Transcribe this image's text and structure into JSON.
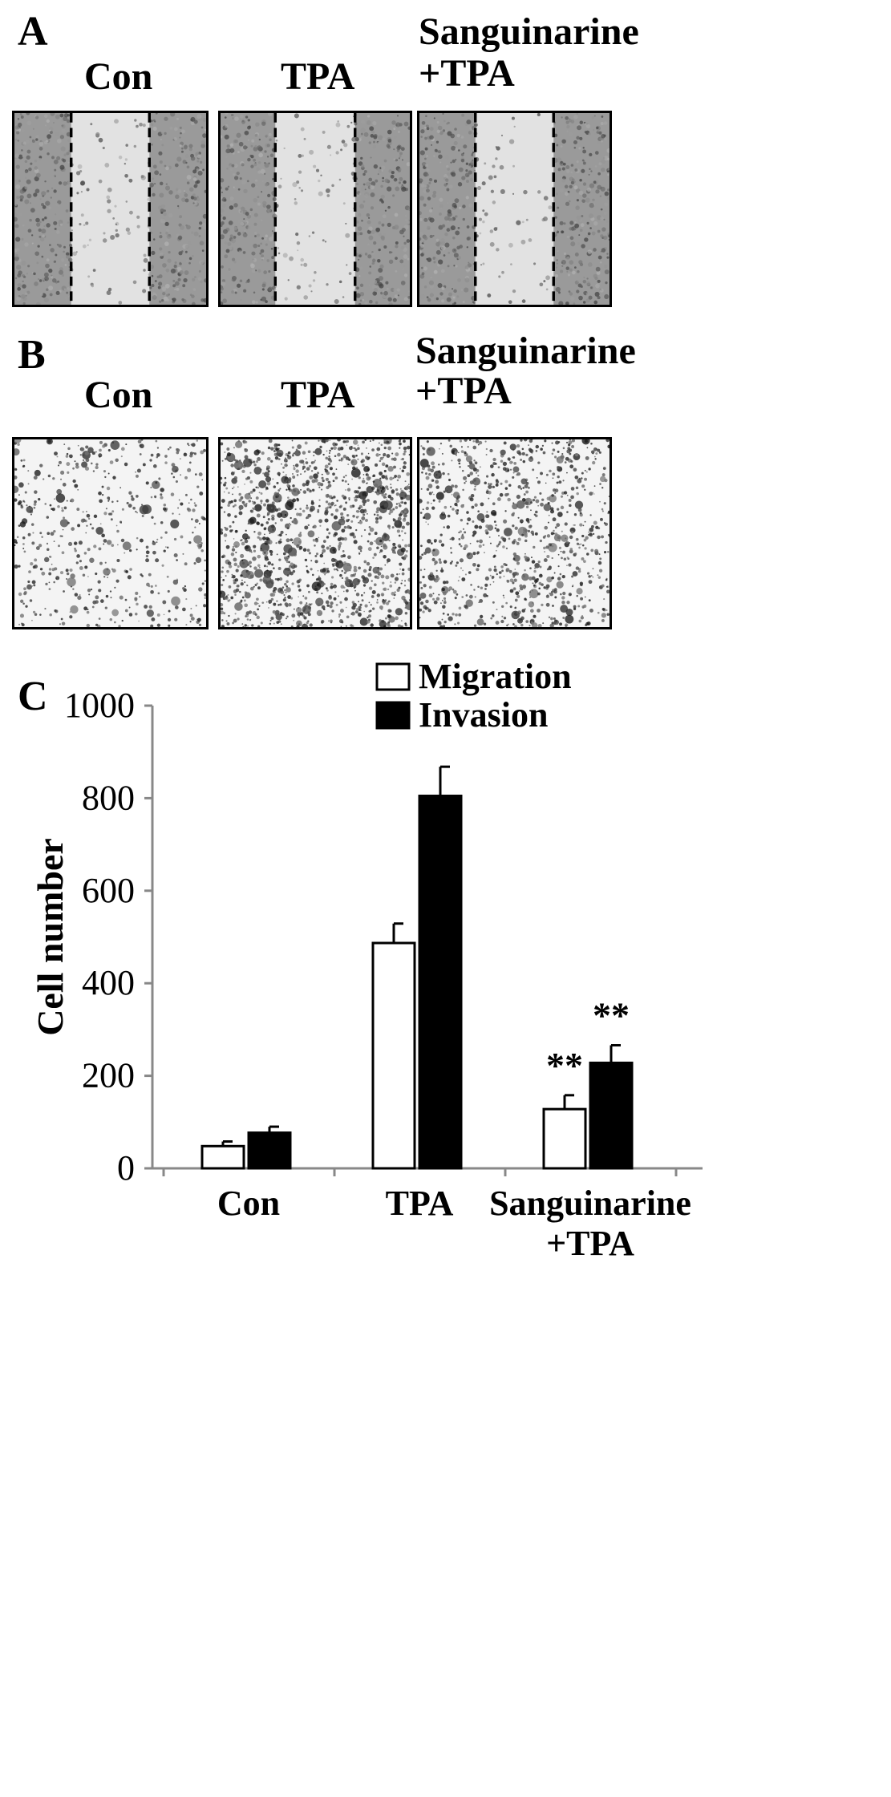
{
  "panel_a": {
    "letter": "A",
    "labels": [
      "Con",
      "TPA"
    ],
    "label3_line1": "Sanguinarine",
    "label3_line2": "+TPA"
  },
  "panel_b": {
    "letter": "B",
    "labels": [
      "Con",
      "TPA"
    ],
    "label3_line1": "Sanguinarine",
    "label3_line2": "+TPA"
  },
  "panel_c": {
    "letter": "C"
  },
  "colors": {
    "migration": "#ffffff",
    "invasion": "#000000",
    "wound_bg": "#9a9a9a",
    "wound_gap": "#e2e2e2",
    "transwell_bg": "#f4f4f4"
  },
  "chart_data": {
    "type": "bar",
    "categories": [
      "Con",
      "TPA",
      "Sanguinarine\n+TPA"
    ],
    "category_lines": [
      [
        "Con"
      ],
      [
        "TPA"
      ],
      [
        "Sanguinarine",
        "+TPA"
      ]
    ],
    "series": [
      {
        "name": "Migration",
        "values": [
          48,
          487,
          128
        ],
        "errors": [
          10,
          42,
          30
        ],
        "color": "#ffffff"
      },
      {
        "name": "Invasion",
        "values": [
          77,
          805,
          228
        ],
        "errors": [
          13,
          63,
          38
        ],
        "color": "#000000"
      }
    ],
    "annotations": [
      {
        "category": 2,
        "series": 0,
        "text": "**"
      },
      {
        "category": 2,
        "series": 1,
        "text": "**"
      }
    ],
    "xlabel": "",
    "ylabel": "Cell number",
    "ylim": [
      0,
      1000
    ],
    "yticks": [
      0,
      200,
      400,
      600,
      800,
      1000
    ],
    "grid": false,
    "legend": "top-right"
  }
}
